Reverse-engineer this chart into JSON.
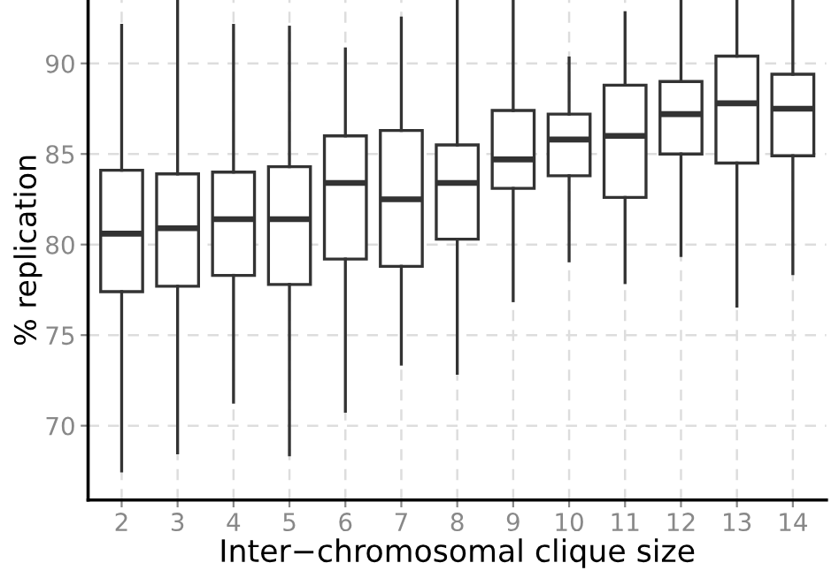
{
  "chart_data": {
    "type": "box",
    "xlabel": "Inter−chromosomal clique size",
    "ylabel": "% replication",
    "categories": [
      "2",
      "3",
      "4",
      "5",
      "6",
      "7",
      "8",
      "9",
      "10",
      "11",
      "12",
      "13",
      "14"
    ],
    "ylim": [
      65.9,
      93.5
    ],
    "yticks": [
      70,
      75,
      80,
      85,
      90
    ],
    "grid": true,
    "color": "#333333",
    "boxes": [
      {
        "low": 67.5,
        "q1": 77.4,
        "median": 80.6,
        "q3": 84.1,
        "high": 92.1
      },
      {
        "low": 68.5,
        "q1": 77.7,
        "median": 80.9,
        "q3": 83.9,
        "high": 93.5
      },
      {
        "low": 71.3,
        "q1": 78.3,
        "median": 81.4,
        "q3": 84.0,
        "high": 92.1
      },
      {
        "low": 68.4,
        "q1": 77.8,
        "median": 81.4,
        "q3": 84.3,
        "high": 92.0
      },
      {
        "low": 70.8,
        "q1": 79.2,
        "median": 83.4,
        "q3": 86.0,
        "high": 90.8
      },
      {
        "low": 73.4,
        "q1": 78.8,
        "median": 82.5,
        "q3": 86.3,
        "high": 92.5
      },
      {
        "low": 72.9,
        "q1": 80.3,
        "median": 83.4,
        "q3": 85.5,
        "high": 93.5
      },
      {
        "low": 76.9,
        "q1": 83.1,
        "median": 84.7,
        "q3": 87.4,
        "high": 93.5
      },
      {
        "low": 79.1,
        "q1": 83.8,
        "median": 85.8,
        "q3": 87.2,
        "high": 90.3
      },
      {
        "low": 77.9,
        "q1": 82.6,
        "median": 86.0,
        "q3": 88.8,
        "high": 92.8
      },
      {
        "low": 79.4,
        "q1": 85.0,
        "median": 87.2,
        "q3": 89.0,
        "high": 93.5
      },
      {
        "low": 76.6,
        "q1": 84.5,
        "median": 87.8,
        "q3": 90.4,
        "high": 93.5
      },
      {
        "low": 78.4,
        "q1": 84.9,
        "median": 87.5,
        "q3": 89.4,
        "high": 93.5
      }
    ]
  }
}
